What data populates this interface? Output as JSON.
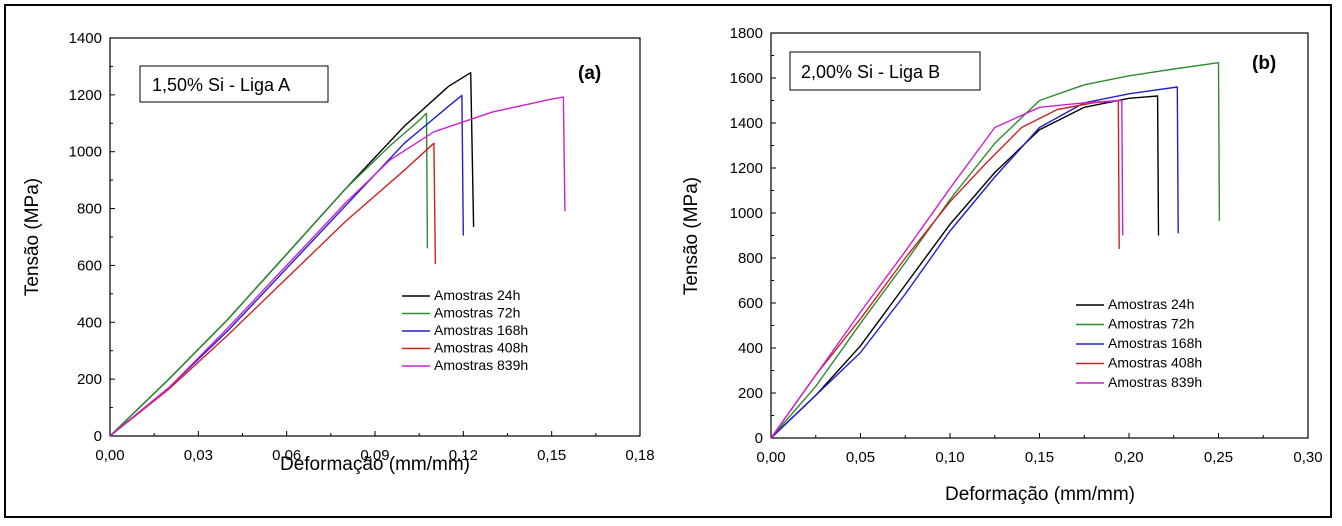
{
  "chart_data": [
    {
      "type": "line",
      "panel": "(a)",
      "annotation": "1,50% Si - Liga A",
      "xlabel": "Deformação (mm/mm)",
      "ylabel": "Tensão (MPa)",
      "xlim": [
        0,
        0.18
      ],
      "ylim": [
        0,
        1400
      ],
      "xticks": [
        "0,00",
        "0,03",
        "0,06",
        "0,09",
        "0,12",
        "0,15",
        "0,18"
      ],
      "yticks": [
        "0",
        "200",
        "400",
        "600",
        "800",
        "1000",
        "1200",
        "1400"
      ],
      "legend_position": "bottom-right",
      "series": [
        {
          "name": "Amostras 24h",
          "color": "#000000",
          "x": [
            0,
            0.02,
            0.04,
            0.06,
            0.08,
            0.1,
            0.115,
            0.1225,
            0.1225,
            0.1235
          ],
          "y": [
            0,
            200,
            410,
            640,
            870,
            1090,
            1230,
            1278,
            1278,
            735
          ]
        },
        {
          "name": "Amostras 72h",
          "color": "#2e8b2e",
          "x": [
            0,
            0.02,
            0.04,
            0.06,
            0.08,
            0.095,
            0.105,
            0.1075,
            0.1075,
            0.1078
          ],
          "y": [
            0,
            200,
            410,
            640,
            870,
            1020,
            1110,
            1135,
            1135,
            660
          ]
        },
        {
          "name": "Amostras 168h",
          "color": "#1f1fcc",
          "x": [
            0,
            0.02,
            0.04,
            0.06,
            0.08,
            0.1,
            0.115,
            0.1195,
            0.1195,
            0.12
          ],
          "y": [
            0,
            170,
            370,
            590,
            810,
            1030,
            1160,
            1198,
            1198,
            705
          ]
        },
        {
          "name": "Amostras 408h",
          "color": "#cc2222",
          "x": [
            0,
            0.02,
            0.04,
            0.06,
            0.08,
            0.1,
            0.11,
            0.11,
            0.1105
          ],
          "y": [
            0,
            165,
            355,
            555,
            755,
            935,
            1030,
            1030,
            605
          ]
        },
        {
          "name": "Amostras 839h",
          "color": "#cc22cc",
          "x": [
            0,
            0.02,
            0.04,
            0.06,
            0.08,
            0.095,
            0.11,
            0.13,
            0.15,
            0.154,
            0.154,
            0.1545
          ],
          "y": [
            0,
            170,
            380,
            600,
            820,
            970,
            1070,
            1140,
            1185,
            1192,
            1192,
            790
          ]
        }
      ]
    },
    {
      "type": "line",
      "panel": "(b)",
      "annotation": "2,00% Si - Liga B",
      "xlabel": "Deformação (mm/mm)",
      "ylabel": "Tensão (MPa)",
      "xlim": [
        0,
        0.3
      ],
      "ylim": [
        0,
        1800
      ],
      "xticks": [
        "0,00",
        "0,05",
        "0,10",
        "0,15",
        "0,20",
        "0,25",
        "0,30"
      ],
      "yticks": [
        "0",
        "200",
        "400",
        "600",
        "800",
        "1000",
        "1200",
        "1400",
        "1600",
        "1800"
      ],
      "legend_position": "bottom-right",
      "series": [
        {
          "name": "Amostras 24h",
          "color": "#000000",
          "x": [
            0,
            0.025,
            0.05,
            0.075,
            0.1,
            0.125,
            0.15,
            0.175,
            0.2,
            0.216,
            0.216,
            0.2165
          ],
          "y": [
            0,
            190,
            410,
            680,
            950,
            1180,
            1370,
            1470,
            1510,
            1520,
            1520,
            900
          ]
        },
        {
          "name": "Amostras 72h",
          "color": "#2e8b2e",
          "x": [
            0,
            0.025,
            0.05,
            0.075,
            0.1,
            0.125,
            0.15,
            0.175,
            0.2,
            0.225,
            0.25,
            0.25,
            0.2505
          ],
          "y": [
            0,
            230,
            510,
            780,
            1060,
            1310,
            1500,
            1570,
            1610,
            1640,
            1668,
            1668,
            965
          ]
        },
        {
          "name": "Amostras 168h",
          "color": "#1f1fcc",
          "x": [
            0,
            0.025,
            0.05,
            0.075,
            0.1,
            0.125,
            0.15,
            0.175,
            0.2,
            0.227,
            0.227,
            0.2275
          ],
          "y": [
            0,
            190,
            380,
            640,
            920,
            1160,
            1380,
            1490,
            1530,
            1560,
            1560,
            910
          ]
        },
        {
          "name": "Amostras 408h",
          "color": "#cc2222",
          "x": [
            0,
            0.025,
            0.05,
            0.075,
            0.1,
            0.12,
            0.14,
            0.16,
            0.18,
            0.194,
            0.194,
            0.1945
          ],
          "y": [
            0,
            280,
            530,
            800,
            1050,
            1220,
            1380,
            1460,
            1490,
            1500,
            1500,
            840
          ]
        },
        {
          "name": "Amostras 839h",
          "color": "#cc22cc",
          "x": [
            0,
            0.025,
            0.05,
            0.075,
            0.1,
            0.125,
            0.15,
            0.175,
            0.196,
            0.196,
            0.1965
          ],
          "y": [
            0,
            280,
            560,
            830,
            1110,
            1380,
            1470,
            1490,
            1500,
            1500,
            900
          ]
        }
      ]
    }
  ]
}
